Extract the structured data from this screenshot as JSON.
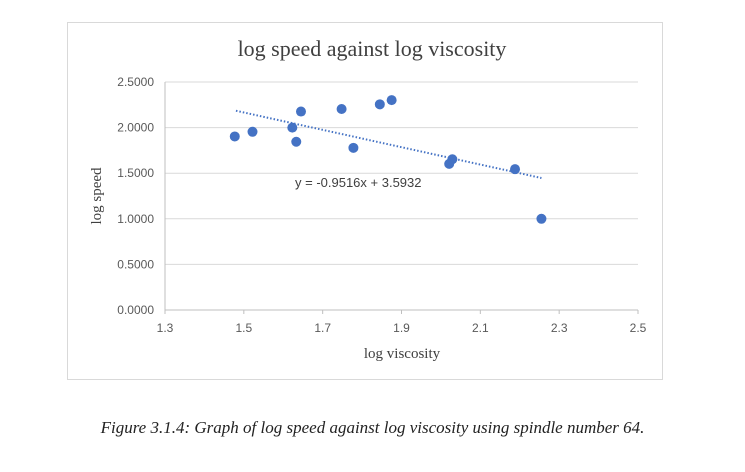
{
  "chart_data": {
    "type": "scatter",
    "title": "log speed against log viscosity",
    "xlabel": "log viscosity",
    "ylabel": "log speed",
    "xlim": [
      1.3,
      2.5
    ],
    "ylim": [
      0,
      2.5
    ],
    "x_ticks": [
      "1.3",
      "1.5",
      "1.7",
      "1.9",
      "2.1",
      "2.3",
      "2.5"
    ],
    "y_ticks": [
      "0.0000",
      "0.5000",
      "1.0000",
      "1.5000",
      "2.0000",
      "2.5000"
    ],
    "grid": "horizontal",
    "point_color": "#4472c4",
    "trendline": {
      "equation": "y = -0.9516x + 3.5932",
      "slope": -0.9516,
      "intercept": 3.5932,
      "x_range": [
        1.48,
        2.255
      ],
      "style": "dotted",
      "color": "#4472c4"
    },
    "points": [
      {
        "x": 1.477,
        "y": 1.903
      },
      {
        "x": 1.522,
        "y": 1.954
      },
      {
        "x": 1.623,
        "y": 2.0
      },
      {
        "x": 1.633,
        "y": 1.845
      },
      {
        "x": 1.645,
        "y": 2.176
      },
      {
        "x": 1.748,
        "y": 2.204
      },
      {
        "x": 1.778,
        "y": 1.778
      },
      {
        "x": 1.845,
        "y": 2.255
      },
      {
        "x": 1.875,
        "y": 2.301
      },
      {
        "x": 2.021,
        "y": 1.602
      },
      {
        "x": 2.029,
        "y": 1.653
      },
      {
        "x": 2.188,
        "y": 1.544
      },
      {
        "x": 2.255,
        "y": 1.0
      }
    ]
  },
  "caption": "Figure 3.1.4: Graph of log speed against log viscosity using spindle number 64."
}
